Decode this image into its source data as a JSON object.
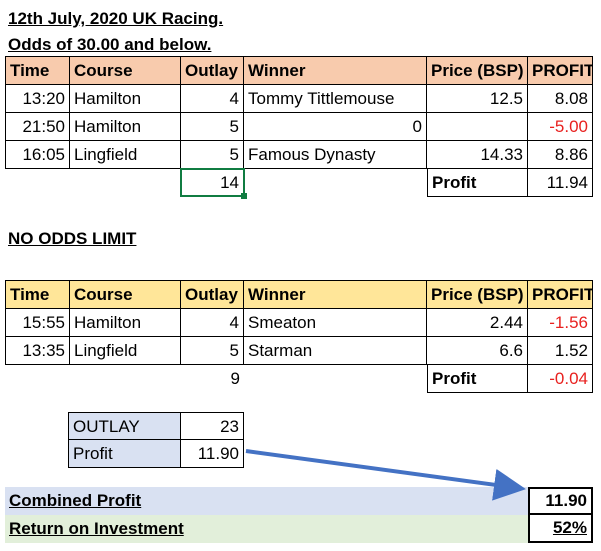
{
  "title_line1": "12th July, 2020 UK Racing.",
  "title_line2": "Odds of 30.00 and below.",
  "table1": {
    "headers": [
      "Time",
      "Course",
      "Outlay",
      "Winner",
      "Price (BSP)",
      "PROFIT"
    ],
    "rows": [
      {
        "time": "13:20",
        "course": "Hamilton",
        "outlay": "4",
        "winner": "Tommy Tittlemouse",
        "price": "12.5",
        "profit": "8.08"
      },
      {
        "time": "21:50",
        "course": "Hamilton",
        "outlay": "5",
        "winner": "0",
        "price": "",
        "profit": "-5.00"
      },
      {
        "time": "16:05",
        "course": "Lingfield",
        "outlay": "5",
        "winner": "Famous Dynasty",
        "price": "14.33",
        "profit": "8.86"
      }
    ],
    "outlay_total": "14",
    "profit_label": "Profit",
    "profit_total": "11.94"
  },
  "no_limit_title": "NO ODDS LIMIT",
  "table2": {
    "headers": [
      "Time",
      "Course",
      "Outlay",
      "Winner",
      "Price (BSP)",
      "PROFIT"
    ],
    "rows": [
      {
        "time": "15:55",
        "course": "Hamilton",
        "outlay": "4",
        "winner": "Smeaton",
        "price": "2.44",
        "profit": "-1.56"
      },
      {
        "time": "13:35",
        "course": "Lingfield",
        "outlay": "5",
        "winner": "Starman",
        "price": "6.6",
        "profit": "1.52"
      }
    ],
    "outlay_total": "9",
    "profit_label": "Profit",
    "profit_total": "-0.04"
  },
  "summary": {
    "outlay_label": "OUTLAY",
    "outlay_value": "23",
    "profit_label": "Profit",
    "profit_value": "11.90"
  },
  "combined_profit_label": "Combined Profit",
  "combined_profit_value": "11.90",
  "roi_label": "Return on Investment",
  "roi_value": "52%",
  "colors": {
    "header1_bg": "#f8cbad",
    "header2_bg": "#ffe699",
    "summary_label_bg": "#d9e1f2",
    "roi_bg": "#e2efda",
    "arrow": "#4472c4",
    "negative": "#e8211f",
    "selected_border": "#107c41"
  }
}
